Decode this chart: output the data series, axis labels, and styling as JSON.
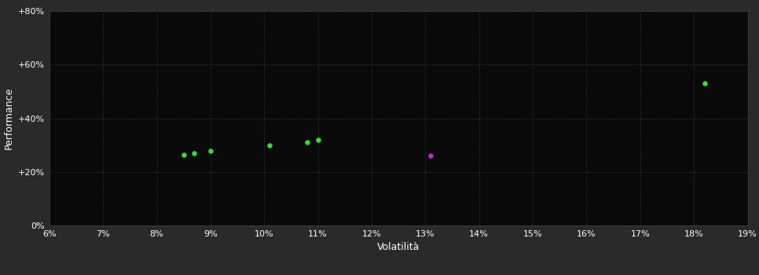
{
  "xlabel": "Volatilità",
  "ylabel": "Performance",
  "background_color": "#2a2a2a",
  "plot_bg_color": "#0a0a0a",
  "grid_color": "#303030",
  "text_color": "#ffffff",
  "xlim": [
    0.06,
    0.19
  ],
  "ylim": [
    0.0,
    0.8
  ],
  "xticks": [
    0.06,
    0.07,
    0.08,
    0.09,
    0.1,
    0.11,
    0.12,
    0.13,
    0.14,
    0.15,
    0.16,
    0.17,
    0.18,
    0.19
  ],
  "yticks": [
    0.0,
    0.2,
    0.4,
    0.6,
    0.8
  ],
  "ytick_labels": [
    "0%",
    "+20%",
    "+40%",
    "+60%",
    "+80%"
  ],
  "green_points": [
    [
      0.085,
      0.265
    ],
    [
      0.087,
      0.27
    ],
    [
      0.09,
      0.278
    ],
    [
      0.101,
      0.3
    ],
    [
      0.108,
      0.31
    ],
    [
      0.11,
      0.318
    ],
    [
      0.182,
      0.53
    ]
  ],
  "magenta_points": [
    [
      0.131,
      0.262
    ]
  ],
  "green_color": "#33dd33",
  "magenta_color": "#cc22cc",
  "point_size": 22
}
